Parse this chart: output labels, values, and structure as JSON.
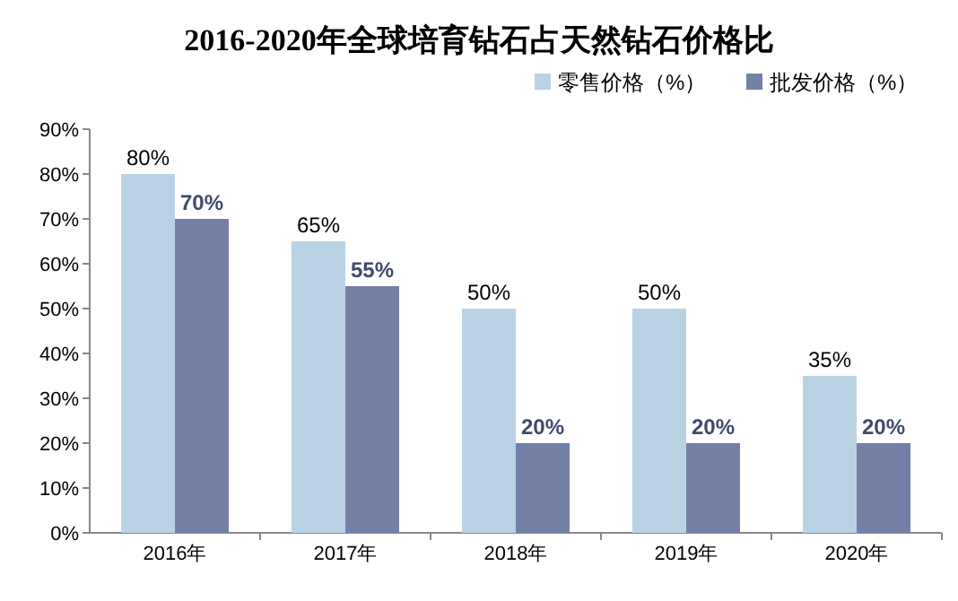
{
  "chart_data": {
    "type": "bar",
    "title": "2016-2020年全球培育钻石占天然钻石价格比",
    "categories": [
      "2016年",
      "2017年",
      "2018年",
      "2019年",
      "2020年"
    ],
    "series": [
      {
        "name": "零售价格（%）",
        "color": "#b9d3e5",
        "values": [
          80,
          65,
          50,
          50,
          35
        ],
        "value_labels": [
          "80%",
          "65%",
          "50%",
          "50%",
          "35%"
        ]
      },
      {
        "name": "批发价格（%）",
        "color": "#7580a7",
        "values": [
          70,
          55,
          20,
          20,
          20
        ],
        "value_labels": [
          "70%",
          "55%",
          "20%",
          "20%",
          "20%"
        ]
      }
    ],
    "ylim": [
      0,
      90
    ],
    "yticks": [
      {
        "value": 0,
        "label": "0%"
      },
      {
        "value": 10,
        "label": "10%"
      },
      {
        "value": 20,
        "label": "20%"
      },
      {
        "value": 30,
        "label": "30%"
      },
      {
        "value": 40,
        "label": "40%"
      },
      {
        "value": 50,
        "label": "50%"
      },
      {
        "value": 60,
        "label": "60%"
      },
      {
        "value": 70,
        "label": "70%"
      },
      {
        "value": 80,
        "label": "80%"
      },
      {
        "value": 90,
        "label": "90%"
      }
    ],
    "grid": false,
    "legend": "top right"
  }
}
